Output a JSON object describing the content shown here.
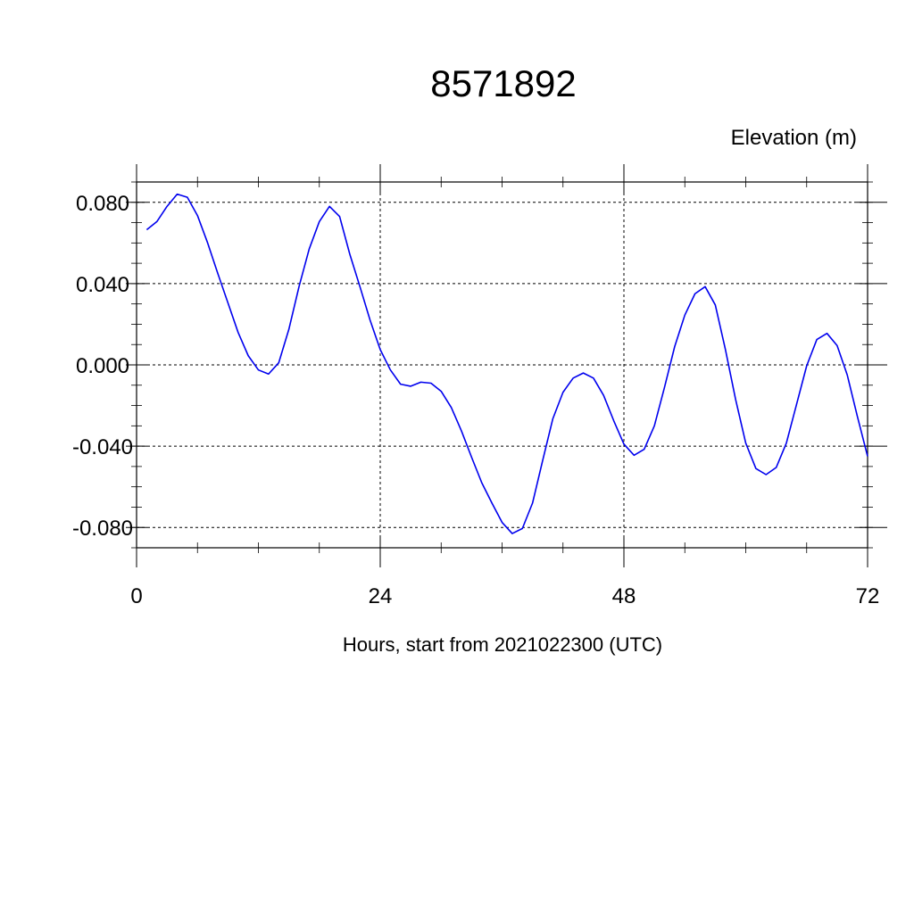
{
  "chart_data": {
    "type": "line",
    "title": "8571892",
    "ylabel": "Elevation (m)",
    "xlabel": "Hours, start from 2021022300 (UTC)",
    "xlim": [
      0,
      72
    ],
    "ylim": [
      -0.09,
      0.09
    ],
    "x_ticks": [
      0,
      24,
      48,
      72
    ],
    "x_tick_labels": [
      "0",
      "24",
      "48",
      "72"
    ],
    "y_ticks": [
      0.08,
      0.04,
      0.0,
      -0.04,
      -0.08
    ],
    "y_tick_labels": [
      "0.080",
      "0.040",
      "0.000",
      "-0.040",
      "-0.080"
    ],
    "grid": true,
    "series": [
      {
        "color": "#0000ee",
        "x": [
          1,
          2,
          3,
          4,
          5,
          6,
          7,
          8,
          9,
          10,
          11,
          12,
          13,
          14,
          15,
          16,
          17,
          18,
          19,
          20,
          21,
          22,
          23,
          24,
          25,
          26,
          27,
          28,
          29,
          30,
          31,
          32,
          33,
          34,
          35,
          36,
          37,
          38,
          39,
          40,
          41,
          42,
          43,
          44,
          45,
          46,
          47,
          48,
          49,
          50,
          51,
          52,
          53,
          54,
          55,
          56,
          57,
          58,
          59,
          60,
          61,
          62,
          63,
          64,
          65,
          66,
          67,
          68,
          69,
          70,
          71,
          72
        ],
        "values": [
          0.0665,
          0.0705,
          0.078,
          0.084,
          0.0825,
          0.0735,
          0.06,
          0.045,
          0.0305,
          0.016,
          0.0045,
          -0.0025,
          -0.0045,
          0.001,
          0.0175,
          0.0385,
          0.057,
          0.0705,
          0.078,
          0.073,
          0.0545,
          0.0385,
          0.022,
          0.0075,
          -0.0025,
          -0.0095,
          -0.0105,
          -0.0085,
          -0.009,
          -0.013,
          -0.021,
          -0.0325,
          -0.0455,
          -0.058,
          -0.068,
          -0.0775,
          -0.083,
          -0.0805,
          -0.068,
          -0.047,
          -0.0265,
          -0.0135,
          -0.0065,
          -0.004,
          -0.0065,
          -0.015,
          -0.0275,
          -0.039,
          -0.0445,
          -0.0415,
          -0.03,
          -0.011,
          0.009,
          0.0245,
          0.035,
          0.0385,
          0.0295,
          0.0075,
          -0.017,
          -0.0385,
          -0.051,
          -0.054,
          -0.0505,
          -0.0385,
          -0.0195,
          -0.0005,
          0.0125,
          0.0155,
          0.0095,
          -0.005,
          -0.0255,
          -0.045
        ]
      }
    ]
  }
}
